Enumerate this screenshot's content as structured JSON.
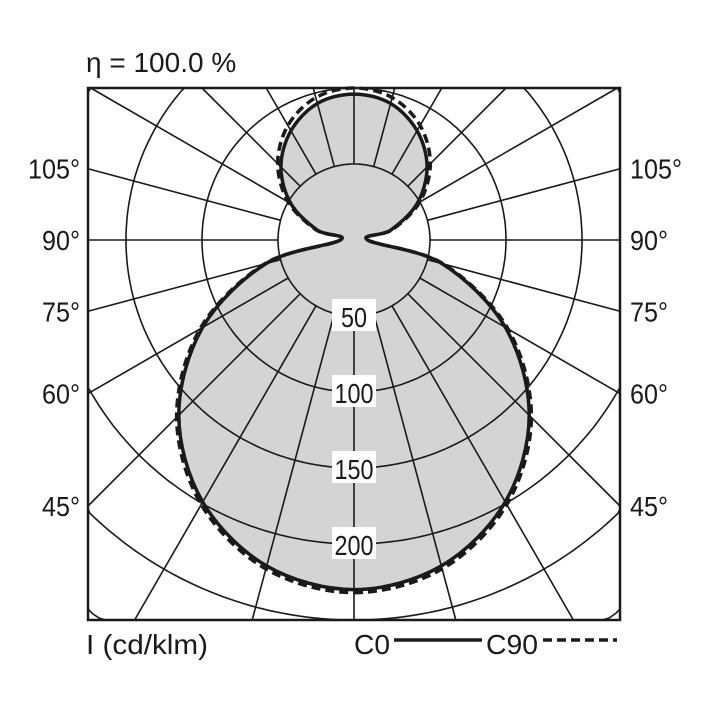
{
  "chart_data": {
    "type": "polar",
    "title": "η = 100.0 %",
    "unit_label": "I (cd/klm)",
    "radial_ticks": [
      50,
      100,
      150,
      200
    ],
    "radial_rings": [
      50,
      100,
      150,
      200,
      250,
      300,
      350
    ],
    "angle_labels": [
      "105°",
      "90°",
      "75°",
      "60°",
      "45°"
    ],
    "angle_label_values": [
      105,
      90,
      75,
      60,
      45
    ],
    "spoke_step_deg": 15,
    "grid": true,
    "fill_color": "#d4d4d4",
    "angles_deg": [
      0,
      15,
      30,
      45,
      60,
      75,
      90,
      105,
      120,
      135,
      150,
      165,
      180
    ],
    "series": [
      {
        "name": "C0",
        "style": "solid",
        "values": [
          230,
          222,
          199,
          163,
          115,
          60,
          9,
          25,
          48,
          68,
          83,
          93,
          96
        ]
      },
      {
        "name": "C90",
        "style": "dashed",
        "values": [
          232,
          224,
          201,
          165,
          117,
          61,
          9,
          26,
          50,
          71,
          87,
          97,
          100
        ]
      }
    ],
    "legend": "bottom-right"
  }
}
